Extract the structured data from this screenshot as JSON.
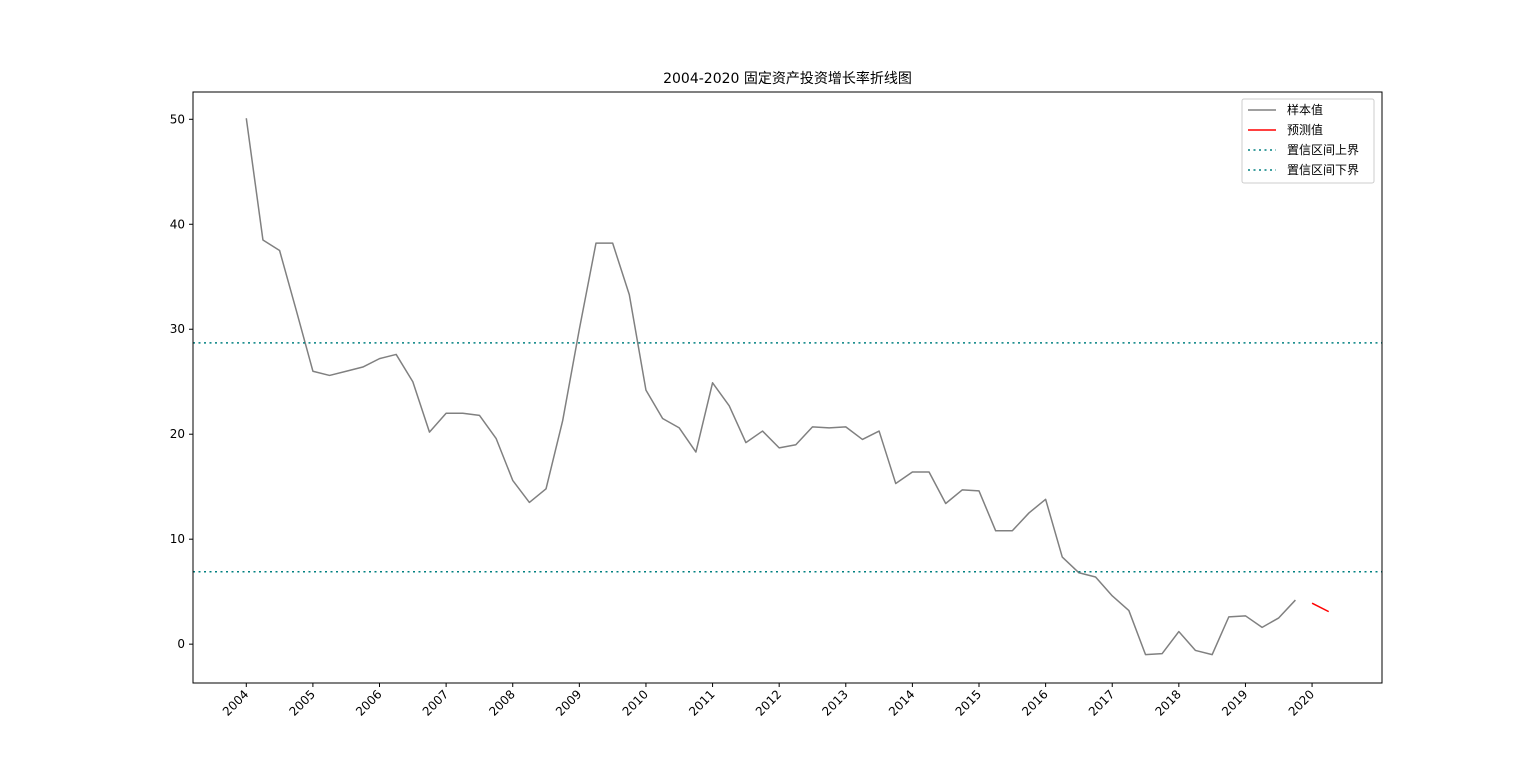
{
  "chart_data": {
    "type": "line",
    "title": "2004-2020 固定资产投资增长率折线图",
    "xlabel": "",
    "ylabel": "",
    "xlim": [
      2003.2,
      2021.05
    ],
    "ylim": [
      -3.7,
      52.6
    ],
    "x_ticks": [
      2004,
      2005,
      2006,
      2007,
      2008,
      2009,
      2010,
      2011,
      2012,
      2013,
      2014,
      2015,
      2016,
      2017,
      2018,
      2019,
      2020
    ],
    "x_tick_labels": [
      "2004",
      "2005",
      "2006",
      "2007",
      "2008",
      "2009",
      "2010",
      "2011",
      "2012",
      "2013",
      "2014",
      "2015",
      "2016",
      "2017",
      "2018",
      "2019",
      "2020"
    ],
    "y_ticks": [
      0,
      10,
      20,
      30,
      40,
      50
    ],
    "y_tick_labels": [
      "0",
      "10",
      "20",
      "30",
      "40",
      "50"
    ],
    "grid": false,
    "legend_position": "top-right",
    "series": [
      {
        "name": "样本值",
        "color": "#808080",
        "style": "solid",
        "x": [
          2004.0,
          2004.25,
          2004.5,
          2004.75,
          2005.0,
          2005.25,
          2005.5,
          2005.75,
          2006.0,
          2006.25,
          2006.5,
          2006.75,
          2007.0,
          2007.25,
          2007.5,
          2007.75,
          2008.0,
          2008.25,
          2008.5,
          2008.75,
          2009.0,
          2009.25,
          2009.5,
          2009.75,
          2010.0,
          2010.25,
          2010.5,
          2010.75,
          2011.0,
          2011.25,
          2011.5,
          2011.75,
          2012.0,
          2012.25,
          2012.5,
          2012.75,
          2013.0,
          2013.25,
          2013.5,
          2013.75,
          2014.0,
          2014.25,
          2014.5,
          2014.75,
          2015.0,
          2015.25,
          2015.5,
          2015.75,
          2016.0,
          2016.25,
          2016.5,
          2016.75,
          2017.0,
          2017.25,
          2017.5,
          2017.75,
          2018.0,
          2018.25,
          2018.5,
          2018.75,
          2019.0,
          2019.25,
          2019.5,
          2019.75
        ],
        "values": [
          50.1,
          38.5,
          37.5,
          31.8,
          26.0,
          25.6,
          26.0,
          26.4,
          27.2,
          27.6,
          25.0,
          20.2,
          22.0,
          22.0,
          21.8,
          19.6,
          15.6,
          13.5,
          14.8,
          21.3,
          30.0,
          38.2,
          38.2,
          33.3,
          24.2,
          21.5,
          20.6,
          18.3,
          24.9,
          22.7,
          19.2,
          20.3,
          18.7,
          19.0,
          20.7,
          20.6,
          20.7,
          19.5,
          20.3,
          15.3,
          16.4,
          16.4,
          13.4,
          14.7,
          14.6,
          10.8,
          10.8,
          12.5,
          13.8,
          8.3,
          6.8,
          6.4,
          4.6,
          3.2,
          -1.0,
          -0.9,
          1.2,
          -0.6,
          -1.0,
          2.6,
          2.7,
          1.6,
          2.5,
          4.2
        ]
      },
      {
        "name": "预测值",
        "color": "#ff0000",
        "style": "solid",
        "x": [
          2020.0,
          2020.25
        ],
        "values": [
          3.9,
          3.1
        ]
      },
      {
        "name": "置信区间上界",
        "color": "#008080",
        "style": "dotted",
        "hline": 28.7
      },
      {
        "name": "置信区间下界",
        "color": "#008080",
        "style": "dotted",
        "hline": 6.9
      }
    ]
  }
}
